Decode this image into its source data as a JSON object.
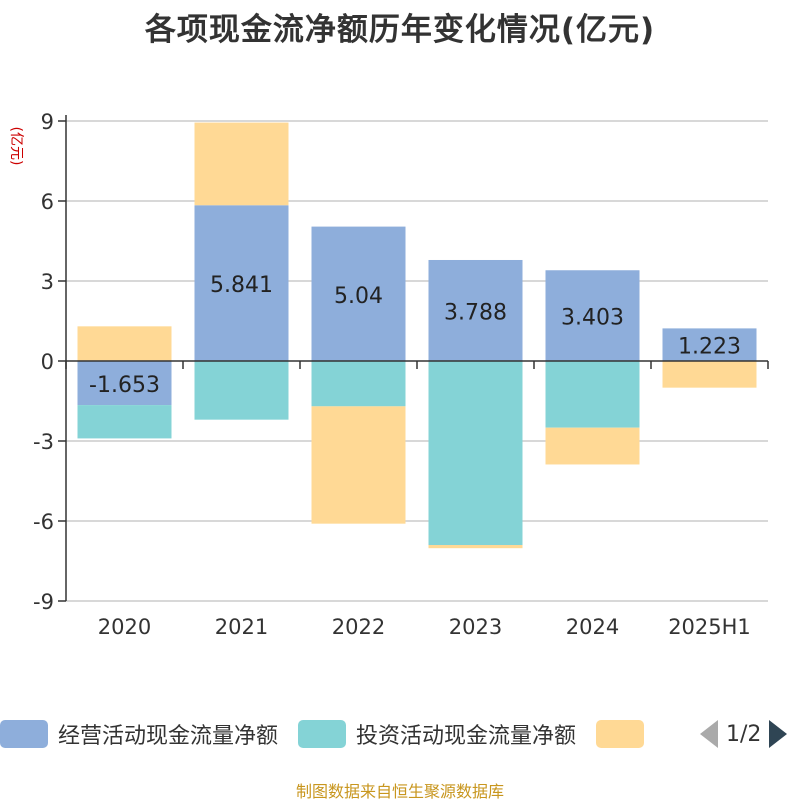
{
  "chart_data": {
    "type": "bar",
    "stacked": true,
    "title": "各项现金流净额历年变化情况(亿元)",
    "ylabel": "(亿元)",
    "xlabel": "",
    "categories": [
      "2020",
      "2021",
      "2022",
      "2023",
      "2024",
      "2025H1"
    ],
    "ylim": [
      -9,
      9
    ],
    "yticks": [
      9,
      6,
      3,
      0,
      -3,
      -6,
      -9
    ],
    "ytick_labels": [
      "9",
      "6",
      "3",
      "0",
      "-3",
      "-6",
      "-9"
    ],
    "grid": true,
    "series": [
      {
        "name": "经营活动现金流量净额",
        "color": "#8eaedb",
        "values": [
          -1.653,
          5.841,
          5.04,
          3.788,
          3.403,
          1.223
        ],
        "labels": [
          "-1.653",
          "5.841",
          "5.04",
          "3.788",
          "3.403",
          "1.223"
        ]
      },
      {
        "name": "投资活动现金流量净额",
        "color": "#84d3d6",
        "values": [
          -1.25,
          -2.2,
          -1.7,
          -6.9,
          -2.5,
          0
        ]
      },
      {
        "name": "",
        "color": "#ffd995",
        "values": [
          1.3,
          3.1,
          -4.4,
          -0.12,
          -1.38,
          -1.0
        ]
      }
    ]
  },
  "legend": {
    "items": [
      {
        "label": "经营活动现金流量净额",
        "color": "#8eaedb"
      },
      {
        "label": "投资活动现金流量净额",
        "color": "#84d3d6"
      },
      {
        "label": "",
        "color": "#ffd995"
      }
    ],
    "page_text": "1/2"
  },
  "footer": {
    "source": "制图数据来自恒生聚源数据库"
  }
}
